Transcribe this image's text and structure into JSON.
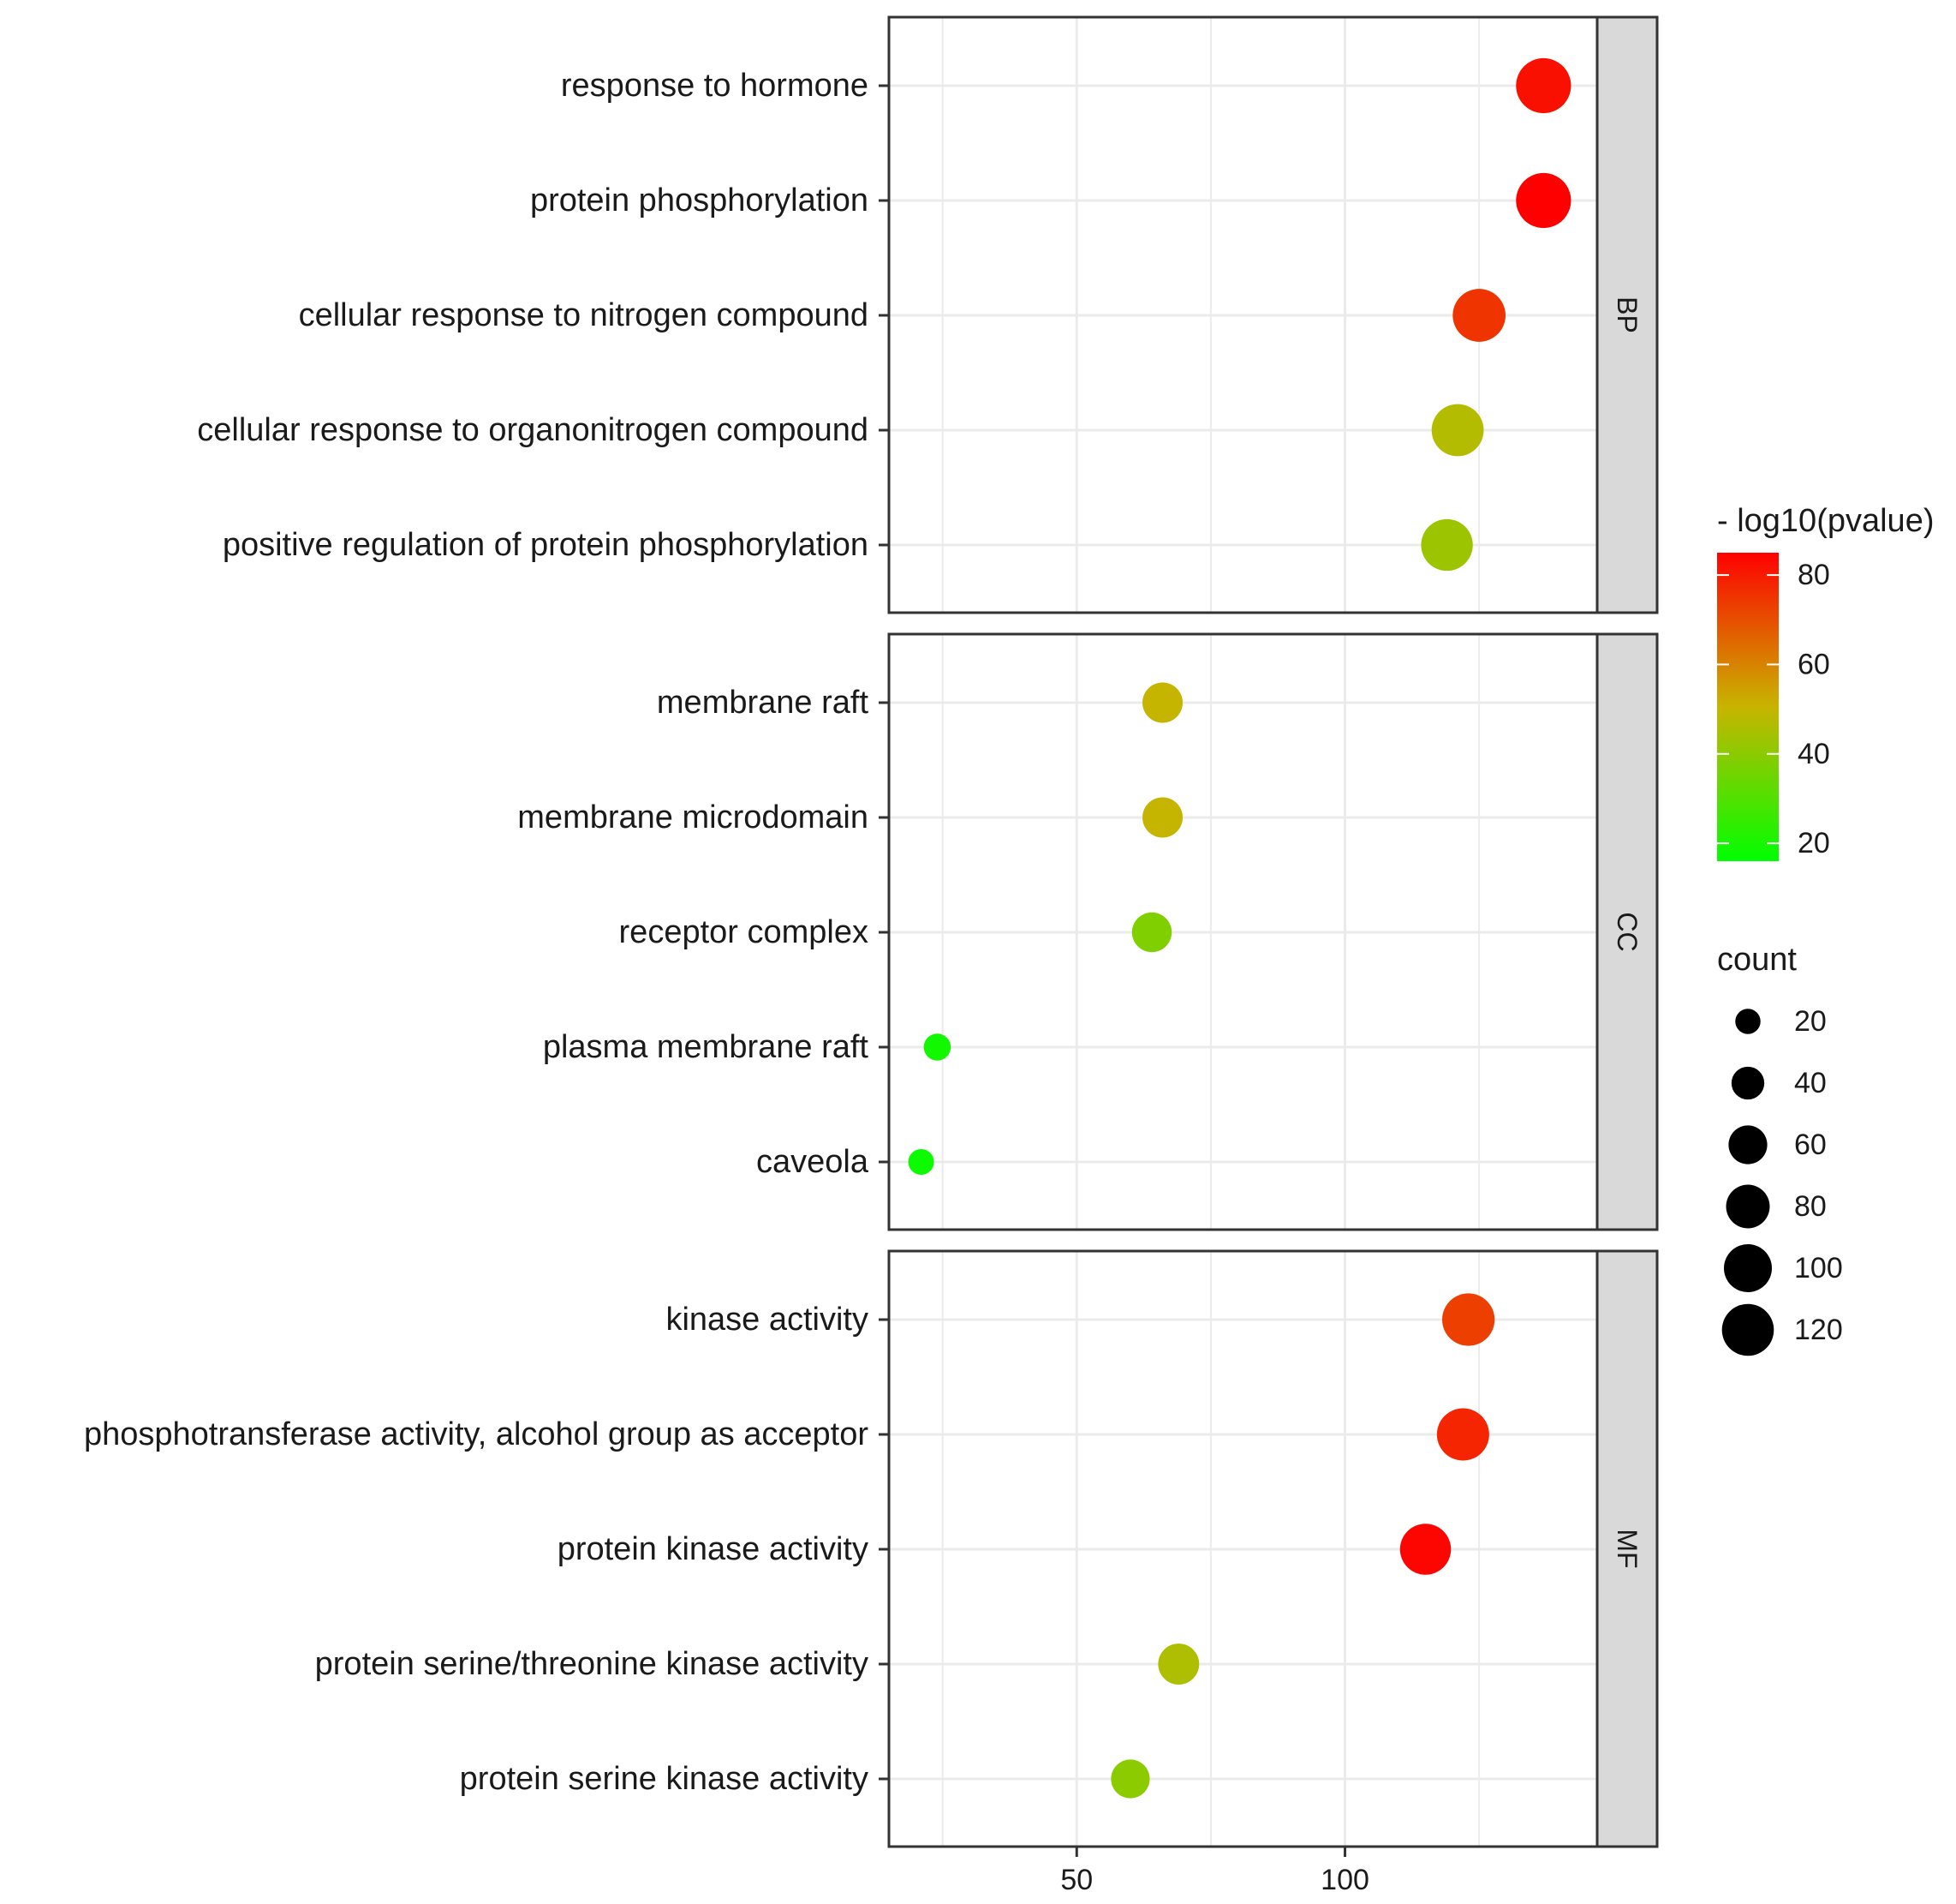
{
  "chart_data": {
    "type": "scatter",
    "xlabel": "",
    "ylabel": "",
    "xlim": [
      15,
      147
    ],
    "x_ticks": [
      50,
      100
    ],
    "grid": true,
    "panels": [
      {
        "label": "BP",
        "terms": [
          {
            "name": "response to hormone",
            "count": 137,
            "neg_log10_p": 82
          },
          {
            "name": "protein phosphorylation",
            "count": 137,
            "neg_log10_p": 85
          },
          {
            "name": "cellular response to nitrogen compound",
            "count": 125,
            "neg_log10_p": 75
          },
          {
            "name": "cellular response to organonitrogen compound",
            "count": 121,
            "neg_log10_p": 47
          },
          {
            "name": "positive regulation of protein phosphorylation",
            "count": 119,
            "neg_log10_p": 43
          }
        ]
      },
      {
        "label": "CC",
        "terms": [
          {
            "name": "membrane raft",
            "count": 66,
            "neg_log10_p": 50
          },
          {
            "name": "membrane microdomain",
            "count": 66,
            "neg_log10_p": 50
          },
          {
            "name": "receptor complex",
            "count": 64,
            "neg_log10_p": 38
          },
          {
            "name": "plasma membrane raft",
            "count": 24,
            "neg_log10_p": 19
          },
          {
            "name": "caveola",
            "count": 21,
            "neg_log10_p": 18
          }
        ]
      },
      {
        "label": "MF",
        "terms": [
          {
            "name": "kinase activity",
            "count": 123,
            "neg_log10_p": 73
          },
          {
            "name": "phosphotransferase activity, alcohol group as acceptor",
            "count": 122,
            "neg_log10_p": 78
          },
          {
            "name": "protein kinase activity",
            "count": 115,
            "neg_log10_p": 84
          },
          {
            "name": "protein serine/threonine kinase activity",
            "count": 69,
            "neg_log10_p": 46
          },
          {
            "name": "protein serine kinase activity",
            "count": 60,
            "neg_log10_p": 40
          }
        ]
      }
    ],
    "color_legend": {
      "title": "- log10(pvalue)",
      "ticks": [
        80,
        60,
        40,
        20
      ],
      "range": [
        16,
        85
      ],
      "low_color": "#00ff00",
      "mid_color": "#c8b400",
      "high_color": "#ff0000"
    },
    "size_legend": {
      "title": "count",
      "values": [
        20,
        40,
        60,
        80,
        100,
        120
      ]
    },
    "legend_position": "right"
  }
}
